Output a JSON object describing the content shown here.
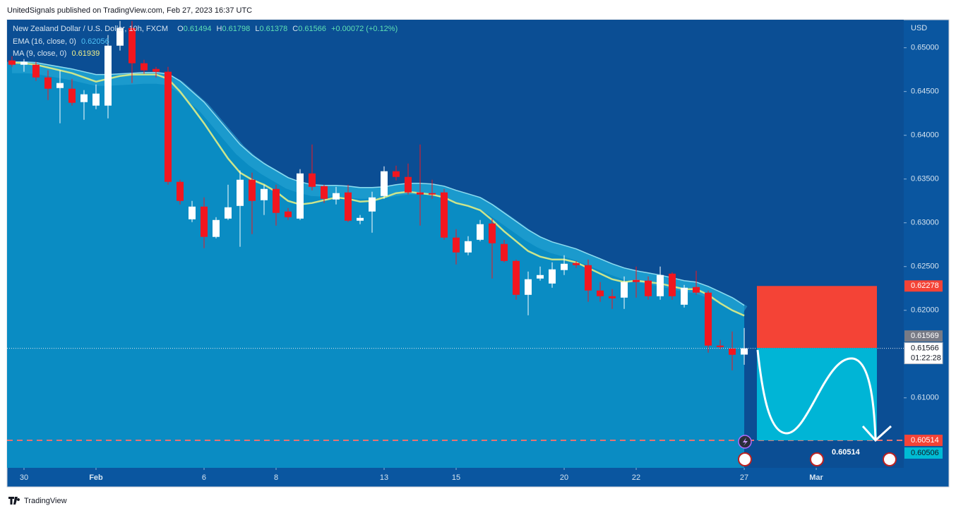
{
  "header": "UnitedSignals published on TradingView.com, Feb 27, 2023 16:37 UTC",
  "footer": "TradingView",
  "chart_data": {
    "type": "candlestick",
    "title": "New Zealand Dollar / U.S. Dollar, 10h, FXCM",
    "ohlc_labels": [
      "O",
      "H",
      "L",
      "C"
    ],
    "change": "+0.00072 (+0.12%)",
    "y_axis_label": "USD",
    "open": [
      0.64855,
      0.64806,
      0.64806,
      0.64661,
      0.6454,
      0.64532,
      0.64379,
      0.64339,
      0.64339,
      0.65024,
      0.65226,
      0.64823,
      0.64758,
      0.64726,
      0.63468,
      0.6304,
      0.63185,
      0.62839,
      0.63048,
      0.63193,
      0.63492,
      0.63258,
      0.63387,
      0.63129,
      0.63048,
      0.63564,
      0.63419,
      0.63266,
      0.63347,
      0.63024,
      0.63129,
      0.63306,
      0.63589,
      0.63524,
      0.63347,
      0.63339,
      0.63347,
      0.62831,
      0.62661,
      0.62806,
      0.62992,
      0.62758,
      0.62564,
      0.62177,
      0.62363,
      0.62306,
      0.6246,
      0.6254,
      0.62516,
      0.62226,
      0.62161,
      0.62145,
      0.62347,
      0.62339,
      0.62161,
      0.62419,
      0.62064,
      0.62266,
      0.62202,
      0.61597,
      0.61564,
      0.61494
    ],
    "high": [
      0.64903,
      0.64871,
      0.64839,
      0.64742,
      0.64742,
      0.64645,
      0.64516,
      0.64581,
      0.65145,
      0.65306,
      0.65306,
      0.64863,
      0.64782,
      0.64782,
      0.63492,
      0.6325,
      0.6329,
      0.63064,
      0.63435,
      0.63597,
      0.63573,
      0.63435,
      0.63435,
      0.63169,
      0.63613,
      0.63895,
      0.63435,
      0.63411,
      0.63435,
      0.63089,
      0.63355,
      0.63645,
      0.63653,
      0.63677,
      0.63895,
      0.63492,
      0.63387,
      0.62927,
      0.62847,
      0.63032,
      0.63048,
      0.62806,
      0.6258,
      0.62443,
      0.625,
      0.62548,
      0.62629,
      0.62564,
      0.6258,
      0.62323,
      0.62242,
      0.62387,
      0.625,
      0.62387,
      0.625,
      0.62435,
      0.6229,
      0.62452,
      0.62226,
      0.61661,
      0.61758,
      0.61798
    ],
    "low": [
      0.64782,
      0.64726,
      0.64621,
      0.64403,
      0.64137,
      0.64339,
      0.64177,
      0.64298,
      0.64193,
      0.64968,
      0.64597,
      0.64702,
      0.64661,
      0.63435,
      0.6321,
      0.63008,
      0.6271,
      0.62822,
      0.63032,
      0.62726,
      0.62871,
      0.63089,
      0.62968,
      0.63032,
      0.63032,
      0.63371,
      0.63226,
      0.6321,
      0.63008,
      0.62984,
      0.62887,
      0.63274,
      0.63484,
      0.63323,
      0.62968,
      0.63274,
      0.62806,
      0.62524,
      0.62629,
      0.6279,
      0.62363,
      0.62548,
      0.62121,
      0.61943,
      0.62339,
      0.62258,
      0.62403,
      0.62484,
      0.62097,
      0.62097,
      0.62016,
      0.62016,
      0.62145,
      0.62121,
      0.62121,
      0.62121,
      0.62032,
      0.62177,
      0.61516,
      0.61556,
      0.61314,
      0.61378
    ],
    "close": [
      0.64806,
      0.64839,
      0.64661,
      0.64532,
      0.64597,
      0.64371,
      0.64468,
      0.64476,
      0.65024,
      0.65226,
      0.64823,
      0.64742,
      0.64726,
      0.63468,
      0.6325,
      0.63185,
      0.62839,
      0.63032,
      0.63177,
      0.63492,
      0.6325,
      0.63387,
      0.63113,
      0.63064,
      0.63564,
      0.63411,
      0.63274,
      0.63339,
      0.63024,
      0.63056,
      0.6329,
      0.63589,
      0.63524,
      0.63347,
      0.63323,
      0.63323,
      0.62831,
      0.62661,
      0.6279,
      0.62984,
      0.62766,
      0.62564,
      0.62177,
      0.62355,
      0.62403,
      0.62468,
      0.62532,
      0.62516,
      0.62226,
      0.62161,
      0.62137,
      0.62323,
      0.62323,
      0.62161,
      0.62403,
      0.62161,
      0.62258,
      0.62202,
      0.61597,
      0.6158,
      0.61492,
      0.61566
    ],
    "up_color": "#ffffff",
    "down_color": "#f2161f",
    "series": [
      {
        "name": "EMA (16, close, 0)",
        "color": "#8fdcef",
        "values": [
          0.64839,
          0.64839,
          0.64831,
          0.64806,
          0.64782,
          0.64758,
          0.64726,
          0.64694,
          0.64694,
          0.64702,
          0.6471,
          0.64718,
          0.64718,
          0.64702,
          0.64621,
          0.645,
          0.64379,
          0.64218,
          0.64056,
          0.63895,
          0.63774,
          0.63677,
          0.63597,
          0.63516,
          0.63468,
          0.63435,
          0.63427,
          0.63427,
          0.63419,
          0.63403,
          0.63403,
          0.63411,
          0.63435,
          0.63452,
          0.63452,
          0.63444,
          0.63419,
          0.63371,
          0.63331,
          0.6329,
          0.6321,
          0.63113,
          0.63016,
          0.62919,
          0.62839,
          0.62782,
          0.62742,
          0.62702,
          0.62645,
          0.62589,
          0.62532,
          0.62484,
          0.62452,
          0.62427,
          0.62403,
          0.62371,
          0.62339,
          0.62323,
          0.62274,
          0.6221,
          0.62145,
          0.62056
        ]
      },
      {
        "name": "MA (9, close, 0)",
        "color": "#cbe58c",
        "values": [
          0.64831,
          0.64823,
          0.64806,
          0.64774,
          0.64742,
          0.6471,
          0.64661,
          0.64613,
          0.64645,
          0.64677,
          0.64694,
          0.64694,
          0.64694,
          0.64645,
          0.645,
          0.64323,
          0.64137,
          0.63935,
          0.63734,
          0.63573,
          0.63492,
          0.63435,
          0.63355,
          0.6325,
          0.6321,
          0.63226,
          0.63258,
          0.6329,
          0.63274,
          0.63242,
          0.6325,
          0.6329,
          0.63339,
          0.63355,
          0.63339,
          0.63323,
          0.6329,
          0.63226,
          0.63193,
          0.63145,
          0.63032,
          0.62903,
          0.6279,
          0.62677,
          0.62613,
          0.6258,
          0.6258,
          0.62548,
          0.62484,
          0.62419,
          0.62355,
          0.62323,
          0.62339,
          0.62323,
          0.62306,
          0.62274,
          0.62242,
          0.62242,
          0.62177,
          0.62081,
          0.62,
          0.61939
        ]
      }
    ],
    "xlim": [
      -0.41,
      74.29
    ],
    "xticks": [
      {
        "value": 1,
        "label": "30"
      },
      {
        "value": 7,
        "label": "Feb"
      },
      {
        "value": 16,
        "label": "6"
      },
      {
        "value": 22,
        "label": "8"
      },
      {
        "value": 31,
        "label": "13"
      },
      {
        "value": 37,
        "label": "15"
      },
      {
        "value": 46,
        "label": "20"
      },
      {
        "value": 52,
        "label": "22"
      },
      {
        "value": 61,
        "label": "27"
      },
      {
        "value": 67,
        "label": "Mar"
      }
    ],
    "ylim": [
      0.602,
      0.6532
    ],
    "yticks": [
      {
        "value": 0.65,
        "label": "0.65000"
      },
      {
        "value": 0.645,
        "label": "0.64500"
      },
      {
        "value": 0.64,
        "label": "0.64000"
      },
      {
        "value": 0.635,
        "label": "0.63500"
      },
      {
        "value": 0.63,
        "label": "0.63000"
      },
      {
        "value": 0.625,
        "label": "0.62500"
      },
      {
        "value": 0.62,
        "label": "0.62000"
      },
      {
        "value": 0.61,
        "label": "0.61000"
      }
    ],
    "position": {
      "stop": 0.62278,
      "entry": 0.61569,
      "target": 0.60514
    },
    "alert_level": 0.60506,
    "countdown": "01:22:28",
    "grid": false
  }
}
